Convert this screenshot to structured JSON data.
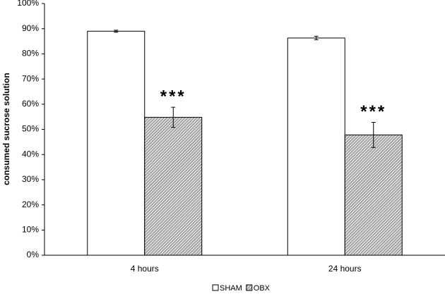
{
  "chart_data": {
    "type": "bar",
    "y_label": "consumed sucrose solution",
    "categories": [
      "4 hours",
      "24 hours"
    ],
    "series": [
      {
        "name": "SHAM",
        "color": "#ffffff",
        "hatch": false,
        "values": [
          89,
          86.3
        ],
        "errors": [
          0.4,
          0.7
        ]
      },
      {
        "name": "OBX",
        "color": "#a8a8a8",
        "hatch": true,
        "values": [
          54.8,
          47.8
        ],
        "errors": [
          4,
          5
        ],
        "annotations": [
          "***",
          "***"
        ]
      }
    ],
    "ylim": [
      0,
      100
    ],
    "yticks": [
      {
        "value": 0,
        "label": "0%"
      },
      {
        "value": 10,
        "label": "10%"
      },
      {
        "value": 20,
        "label": "20%"
      },
      {
        "value": 30,
        "label": "30%"
      },
      {
        "value": 40,
        "label": "40%"
      },
      {
        "value": 50,
        "label": "50%"
      },
      {
        "value": 60,
        "label": "60%"
      },
      {
        "value": 70,
        "label": "70%"
      },
      {
        "value": 80,
        "label": "80%"
      },
      {
        "value": 90,
        "label": "90%"
      },
      {
        "value": 100,
        "label": "100%"
      }
    ],
    "legend": "bottom"
  }
}
